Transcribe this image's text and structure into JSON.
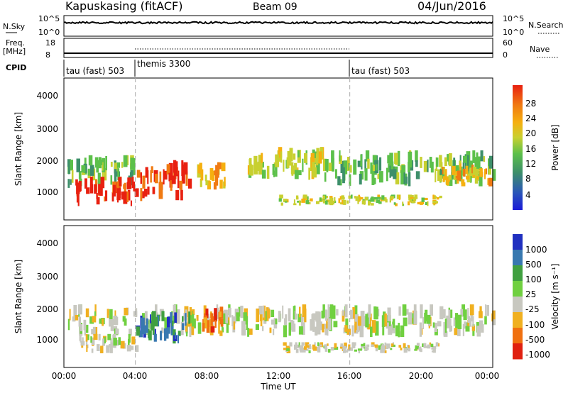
{
  "header": {
    "station": "Kapuskasing (fitACF)",
    "beam": "Beam 09",
    "date": "04/Jun/2016"
  },
  "nsky_panel": {
    "label": "N.Sky",
    "ticks_left": [
      "10^5",
      "10^0"
    ],
    "ticks_right": [
      "10^5",
      "10^0"
    ],
    "right_label": "N.Search"
  },
  "freq_panel": {
    "label_line1": "Freq.",
    "label_line2": "[MHz]",
    "ticks_left": [
      "18",
      "8"
    ],
    "ticks_right": [
      "60",
      "0"
    ],
    "right_label": "Nave"
  },
  "cpid": {
    "label": "CPID",
    "segments": [
      {
        "name": "tau (fast) 503",
        "start": 0,
        "end": 4
      },
      {
        "name": "themis 3300",
        "start": 4,
        "end": 16
      },
      {
        "name": "tau (fast) 503",
        "start": 16,
        "end": 24
      }
    ]
  },
  "chart_data": [
    {
      "type": "heatmap",
      "name": "power",
      "ylabel": "Slant Range [km]",
      "ylim": [
        180,
        4500
      ],
      "xlim": [
        0,
        24
      ],
      "yticks": [
        "1000",
        "2000",
        "3000",
        "4000"
      ],
      "colorbar_label": "Power [dB]",
      "colorbar_ticks": [
        "4",
        "8",
        "12",
        "16",
        "20",
        "24",
        "28"
      ],
      "colors": [
        "#1a1ad8",
        "#2a56b8",
        "#3d8f6a",
        "#5cc04a",
        "#c8d030",
        "#f5b010",
        "#f07a12",
        "#e82010"
      ],
      "bands": [
        {
          "x": [
            0.2,
            4.0
          ],
          "y": [
            1150,
            2150
          ],
          "level": 3
        },
        {
          "x": [
            0.6,
            4.0
          ],
          "y": [
            600,
            1500
          ],
          "level": 7
        },
        {
          "x": [
            4.0,
            7.0
          ],
          "y": [
            700,
            2000
          ],
          "level": 7
        },
        {
          "x": [
            7.4,
            9.0
          ],
          "y": [
            1100,
            2050
          ],
          "level": 5
        },
        {
          "x": [
            10.2,
            14.5
          ],
          "y": [
            1400,
            2400
          ],
          "level": 4
        },
        {
          "x": [
            12.0,
            21.0
          ],
          "y": [
            600,
            950
          ],
          "level": 4
        },
        {
          "x": [
            14.5,
            24.0
          ],
          "y": [
            1200,
            2300
          ],
          "level": 3
        },
        {
          "x": [
            21.0,
            24.0
          ],
          "y": [
            1200,
            1900
          ],
          "level": 5
        }
      ]
    },
    {
      "type": "heatmap",
      "name": "velocity",
      "ylabel": "Slant Range [km]",
      "xlabel": "Time UT",
      "ylim": [
        180,
        4500
      ],
      "xlim": [
        0,
        24
      ],
      "yticks": [
        "1000",
        "2000",
        "3000",
        "4000"
      ],
      "xticks": [
        "00:00",
        "04:00",
        "08:00",
        "12:00",
        "16:00",
        "20:00",
        "00:00"
      ],
      "colorbar_label": "Velocity [m s⁻¹]",
      "colorbar_ticks": [
        "1000",
        "500",
        "100",
        "25",
        "-25",
        "-100",
        "-500",
        "-1000"
      ],
      "colors": [
        "#2030c0",
        "#3878b0",
        "#40a040",
        "#70d040",
        "#c8c8c0",
        "#f0b020",
        "#f07010",
        "#e02010"
      ],
      "bands": [
        {
          "x": [
            0.2,
            24.0
          ],
          "y": [
            1100,
            2100
          ],
          "level": 4
        },
        {
          "x": [
            0.8,
            4.0
          ],
          "y": [
            600,
            1200
          ],
          "level": 4
        },
        {
          "x": [
            4.0,
            7.0
          ],
          "y": [
            900,
            1900
          ],
          "level": 1
        },
        {
          "x": [
            7.6,
            9.0
          ],
          "y": [
            1100,
            2050
          ],
          "level": 6
        },
        {
          "x": [
            12.0,
            21.0
          ],
          "y": [
            600,
            950
          ],
          "level": 4
        }
      ]
    }
  ],
  "dashed_times": [
    4,
    16
  ]
}
